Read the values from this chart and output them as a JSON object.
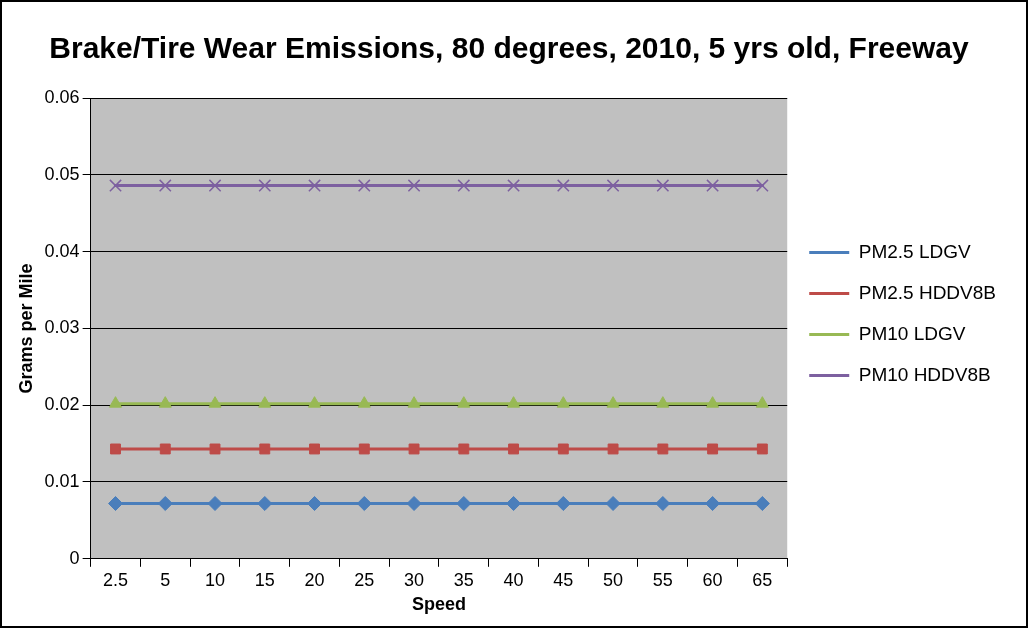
{
  "chart_data": {
    "type": "line",
    "title": "Brake/Tire Wear Emissions, 80 degrees, 2010, 5 yrs old, Freeway",
    "xlabel": "Speed",
    "ylabel": "Grams per Mile",
    "categories": [
      "2.5",
      "5",
      "10",
      "15",
      "20",
      "25",
      "30",
      "35",
      "40",
      "45",
      "50",
      "55",
      "60",
      "65"
    ],
    "series": [
      {
        "name": "PM2.5 LDGV",
        "color": "#4a7ebb",
        "marker": "diamond",
        "values": [
          0.0072,
          0.0072,
          0.0072,
          0.0072,
          0.0072,
          0.0072,
          0.0072,
          0.0072,
          0.0072,
          0.0072,
          0.0072,
          0.0072,
          0.0072,
          0.0072
        ]
      },
      {
        "name": "PM2.5 HDDV8B",
        "color": "#be4b48",
        "marker": "square",
        "values": [
          0.0143,
          0.0143,
          0.0143,
          0.0143,
          0.0143,
          0.0143,
          0.0143,
          0.0143,
          0.0143,
          0.0143,
          0.0143,
          0.0143,
          0.0143,
          0.0143
        ]
      },
      {
        "name": "PM10 LDGV",
        "color": "#98b954",
        "marker": "triangle",
        "values": [
          0.0202,
          0.0202,
          0.0202,
          0.0202,
          0.0202,
          0.0202,
          0.0202,
          0.0202,
          0.0202,
          0.0202,
          0.0202,
          0.0202,
          0.0202,
          0.0202
        ]
      },
      {
        "name": "PM10 HDDV8B",
        "color": "#7d60a0",
        "marker": "cross",
        "values": [
          0.0486,
          0.0486,
          0.0486,
          0.0486,
          0.0486,
          0.0486,
          0.0486,
          0.0486,
          0.0486,
          0.0486,
          0.0486,
          0.0486,
          0.0486,
          0.0486
        ]
      }
    ],
    "ylim": [
      0,
      0.06
    ],
    "yticks": [
      0,
      0.01,
      0.02,
      0.03,
      0.04,
      0.05,
      0.06
    ],
    "grid": "y",
    "legend": "right",
    "line_style": "solid"
  }
}
